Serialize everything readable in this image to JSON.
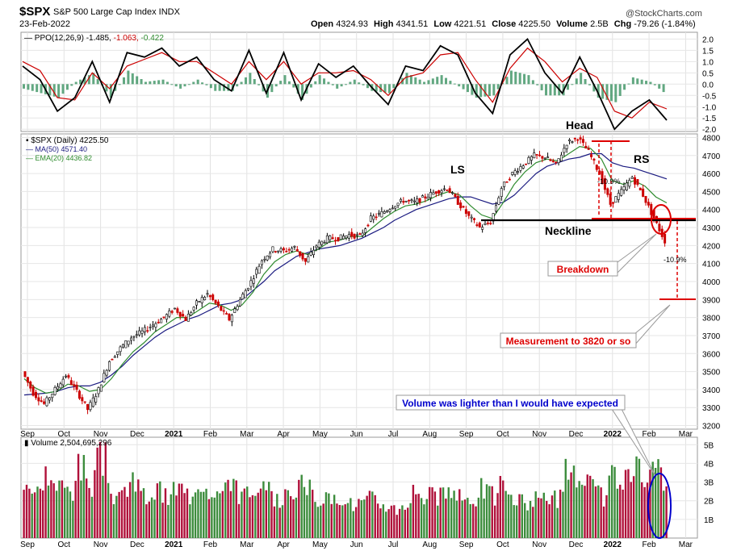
{
  "header": {
    "symbol": "$SPX",
    "name": "S&P 500 Large Cap Index INDX",
    "date": "23-Feb-2022",
    "source": "@StockCharts.com",
    "stats": [
      {
        "label": "Open",
        "value": "4324.93"
      },
      {
        "label": "High",
        "value": "4341.51"
      },
      {
        "label": "Low",
        "value": "4221.51"
      },
      {
        "label": "Close",
        "value": "4225.50"
      },
      {
        "label": "Volume",
        "value": "2.5B"
      },
      {
        "label": "Chg",
        "value": "-79.26 (-1.84%)"
      }
    ]
  },
  "colors": {
    "up": "#2e8b2e",
    "down": "#cc0000",
    "ma50": "#1a1a80",
    "ema20": "#2e8b2e",
    "ppo_line": "#000000",
    "ppo_signal": "#cc0000",
    "histogram": "#2e8b57",
    "volume_down": "#b0103a",
    "volume_up": "#3c8c3c",
    "annotation_red": "#dd0000",
    "annotation_blue": "#0000cc"
  },
  "chart_data": [
    {
      "type": "line",
      "panel": "ppo",
      "legend": {
        "name": "PPO(12,26,9)",
        "values": [
          "-1.485",
          "-1.063",
          "-0.422"
        ]
      },
      "y_ticks": [
        "2.0",
        "1.5",
        "1.0",
        "0.5",
        "0.0",
        "-0.5",
        "-1.0",
        "-1.5",
        "-2.0"
      ],
      "ylim": [
        -2.1,
        2.3
      ],
      "months": [
        "Sep",
        "Oct",
        "Nov",
        "Dec",
        "2021",
        "Feb",
        "Mar",
        "Apr",
        "May",
        "Jun",
        "Jul",
        "Aug",
        "Sep",
        "Oct",
        "Nov",
        "Dec",
        "2022",
        "Feb",
        "Mar"
      ],
      "ppo_line": [
        0.8,
        0.2,
        -1.2,
        -0.6,
        1.0,
        -0.8,
        1.4,
        1.2,
        1.6,
        0.8,
        1.2,
        0.2,
        -0.3,
        1.5,
        -0.4,
        1.4,
        -0.7,
        0.9,
        0.3,
        0.8,
        -0.1,
        -0.9,
        0.8,
        0.6,
        1.7,
        1.3,
        -0.4,
        -1.3,
        1.3,
        2.0,
        0.5,
        -0.4,
        1.2,
        -0.3,
        -2.0,
        -1.2,
        -0.7,
        -1.6
      ],
      "ppo_signal": [
        1.0,
        0.6,
        -0.6,
        -0.7,
        0.5,
        -0.2,
        0.8,
        1.1,
        1.4,
        1.0,
        1.0,
        0.5,
        0.0,
        1.0,
        0.2,
        1.0,
        0.0,
        0.5,
        0.5,
        0.6,
        0.2,
        -0.5,
        0.3,
        0.5,
        1.3,
        1.4,
        0.2,
        -0.8,
        0.7,
        1.6,
        1.0,
        0.1,
        0.7,
        0.3,
        -1.2,
        -1.5,
        -0.8,
        -1.1
      ]
    },
    {
      "type": "line",
      "panel": "price",
      "legend": [
        {
          "name": "$SPX (Daily)",
          "value": "4225.50"
        },
        {
          "name": "MA(50)",
          "value": "4571.40"
        },
        {
          "name": "EMA(20)",
          "value": "4436.82"
        }
      ],
      "y_ticks": [
        "4800",
        "4700",
        "4600",
        "4500",
        "4400",
        "4300",
        "4200",
        "4100",
        "4000",
        "3900",
        "3800",
        "3700",
        "3600",
        "3500",
        "3400",
        "3300",
        "3200"
      ],
      "ylim": [
        3180,
        4820
      ],
      "x_ticks": [
        "Sep",
        "Oct",
        "Nov",
        "Dec",
        "2021",
        "Feb",
        "Mar",
        "Apr",
        "May",
        "Jun",
        "Jul",
        "Aug",
        "Sep",
        "Oct",
        "Nov",
        "Dec",
        "2022",
        "Feb",
        "Mar"
      ],
      "close": [
        3500,
        3380,
        3320,
        3400,
        3480,
        3390,
        3290,
        3400,
        3560,
        3630,
        3690,
        3720,
        3760,
        3800,
        3850,
        3790,
        3880,
        3930,
        3860,
        3790,
        3900,
        4000,
        4120,
        4180,
        4170,
        4190,
        4110,
        4200,
        4240,
        4240,
        4260,
        4250,
        4350,
        4380,
        4420,
        4450,
        4440,
        4470,
        4500,
        4520,
        4440,
        4360,
        4300,
        4330,
        4520,
        4600,
        4650,
        4700,
        4690,
        4650,
        4770,
        4800,
        4720,
        4600,
        4430,
        4500,
        4580,
        4480,
        4350,
        4225
      ],
      "ma50": [
        3370,
        3375,
        3380,
        3390,
        3410,
        3420,
        3420,
        3440,
        3480,
        3530,
        3590,
        3640,
        3690,
        3730,
        3760,
        3790,
        3810,
        3840,
        3870,
        3880,
        3900,
        3950,
        4000,
        4060,
        4100,
        4140,
        4160,
        4180,
        4190,
        4200,
        4220,
        4240,
        4270,
        4300,
        4340,
        4370,
        4400,
        4420,
        4440,
        4460,
        4470,
        4470,
        4450,
        4430,
        4440,
        4480,
        4540,
        4600,
        4640,
        4660,
        4680,
        4690,
        4710,
        4710,
        4660,
        4640,
        4630,
        4610,
        4590,
        4570
      ],
      "ema20": [
        3460,
        3410,
        3380,
        3390,
        3430,
        3420,
        3390,
        3400,
        3460,
        3540,
        3610,
        3660,
        3720,
        3760,
        3800,
        3800,
        3840,
        3880,
        3870,
        3840,
        3870,
        3940,
        4040,
        4110,
        4150,
        4170,
        4150,
        4180,
        4220,
        4230,
        4250,
        4250,
        4300,
        4350,
        4390,
        4420,
        4430,
        4450,
        4480,
        4500,
        4480,
        4420,
        4370,
        4350,
        4440,
        4540,
        4610,
        4660,
        4680,
        4670,
        4710,
        4750,
        4740,
        4680,
        4560,
        4540,
        4560,
        4530,
        4470,
        4437
      ],
      "annotations": [
        "Head",
        "LS",
        "RS",
        "Neckline",
        "-10.9%",
        "-10.9%",
        "Breakdown",
        "Measurement to 3820 or so",
        "Volume was lighter than I would have expected"
      ]
    },
    {
      "type": "bar",
      "panel": "volume",
      "legend": {
        "name": "Volume",
        "value": "2,504,695,296"
      },
      "y_ticks": [
        "5B",
        "4B",
        "3B",
        "2B",
        "1B"
      ],
      "ylim": [
        0,
        5.4
      ],
      "x_ticks": [
        "Sep",
        "Oct",
        "Nov",
        "Dec",
        "2021",
        "Feb",
        "Mar",
        "Apr",
        "May",
        "Jun",
        "Jul",
        "Aug",
        "Sep",
        "Oct",
        "Nov",
        "Dec",
        "2022",
        "Feb",
        "Mar"
      ],
      "values": [
        3.2,
        2.6,
        3.6,
        2.9,
        2.8,
        3.9,
        3.1,
        4.4,
        2.5,
        2.7,
        3.0,
        2.4,
        2.6,
        2.3,
        2.8,
        2.5,
        3.3,
        2.9,
        2.6,
        3.4,
        2.5,
        2.2,
        2.6,
        2.1,
        2.4,
        2.9,
        2.8,
        2.3,
        2.1,
        2.5,
        1.9,
        2.0,
        2.2,
        1.9,
        1.7,
        2.0,
        2.7,
        2.4,
        2.3,
        2.6,
        2.2,
        2.3,
        2.8,
        2.4,
        3.0,
        2.1,
        2.0,
        2.2,
        2.5,
        2.3,
        4.0,
        2.6,
        3.0,
        2.4,
        3.4,
        3.1,
        3.9,
        3.1,
        3.6,
        2.5
      ]
    }
  ]
}
